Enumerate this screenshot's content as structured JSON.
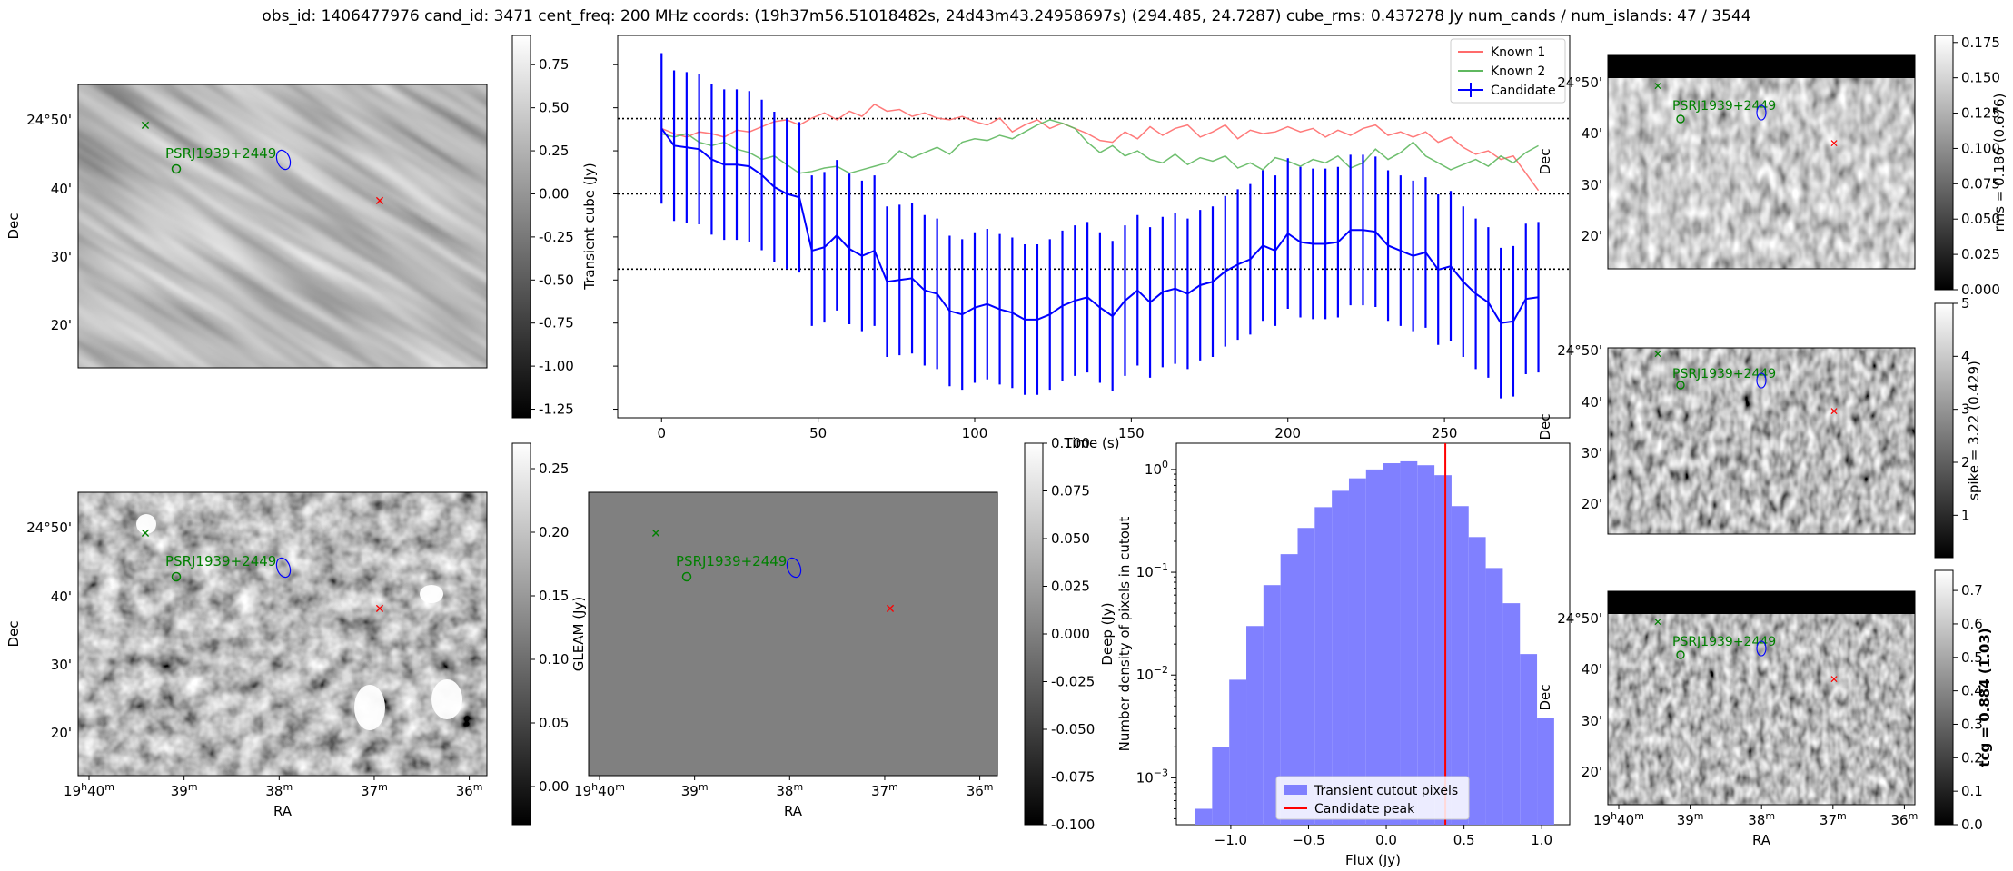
{
  "title": "obs_id: 1406477976 cand_id: 3471 cent_freq: 200 MHz coords: (19h37m56.51018482s, 24d43m43.24958697s) (294.485, 24.7287) cube_rms: 0.437278 Jy num_cands / num_islands: 47 / 3544",
  "sky": {
    "source_label": "PSRJ1939+2449",
    "dec_ticks": [
      "24°50'",
      "40'",
      "30'",
      "20'"
    ],
    "ra_ticks": [
      "19h40m",
      "39m",
      "38m",
      "37m",
      "36m"
    ],
    "ra_tick_h": "h",
    "ra_tick_m": "m",
    "xlabel": "RA",
    "ylabel": "Dec"
  },
  "panels": {
    "transient_cube": {
      "colorbar_label": "Transient cube (Jy)",
      "ticks": [
        "0.75",
        "0.50",
        "0.25",
        "0.00",
        "-0.25",
        "-0.50",
        "-0.75",
        "-1.00",
        "-1.25"
      ],
      "range": [
        -1.3,
        0.92
      ]
    },
    "deep": {
      "colorbar_label": "Deep (Jy)",
      "ticks": [
        "0.25",
        "0.20",
        "0.15",
        "0.10",
        "0.05",
        "0.00"
      ],
      "range": [
        -0.03,
        0.27
      ]
    },
    "gleam": {
      "colorbar_label": "GLEAM (Jy)",
      "ticks": [
        "0.100",
        "0.075",
        "0.050",
        "0.025",
        "0.000",
        "-0.025",
        "-0.050",
        "-0.075",
        "-0.100"
      ],
      "range": [
        -0.1,
        0.1
      ]
    },
    "rms": {
      "colorbar_label": "rms = 0.186 (0.676)",
      "ticks": [
        "0.175",
        "0.150",
        "0.125",
        "0.100",
        "0.075",
        "0.050",
        "0.025",
        "0.000"
      ],
      "range": [
        0,
        0.18
      ]
    },
    "spike": {
      "colorbar_label": "spike = 3.22 (0.429)",
      "ticks": [
        "5",
        "4",
        "3",
        "2",
        "1"
      ],
      "range": [
        0.2,
        5
      ]
    },
    "tcg": {
      "colorbar_label": "tcg = 0.884 (1.03)",
      "ticks": [
        "0.7",
        "0.6",
        "0.5",
        "0.4",
        "0.3",
        "0.2",
        "0.1",
        "0.0"
      ],
      "range": [
        0,
        0.76
      ]
    }
  },
  "chart_data": [
    {
      "type": "line",
      "title": "",
      "xlabel": "Time (s)",
      "ylabel": "Transient cube (Jy)",
      "xlim": [
        -14,
        290
      ],
      "ylim": [
        -1.3,
        0.92
      ],
      "xticks": [
        "0",
        "50",
        "100",
        "150",
        "200",
        "250"
      ],
      "hlines": [
        0.437,
        0.0,
        -0.437
      ],
      "legend": {
        "position": "top-right",
        "entries": [
          "Known 1",
          "Known 2",
          "Candidate"
        ]
      },
      "series": [
        {
          "name": "Known 1",
          "color": "#ff6b6b",
          "x": [
            0,
            4,
            8,
            12,
            16,
            20,
            24,
            28,
            32,
            36,
            40,
            44,
            48,
            52,
            56,
            60,
            64,
            68,
            72,
            76,
            80,
            84,
            88,
            92,
            96,
            100,
            104,
            108,
            112,
            116,
            120,
            124,
            128,
            132,
            136,
            140,
            144,
            148,
            152,
            156,
            160,
            164,
            168,
            172,
            176,
            180,
            184,
            188,
            192,
            196,
            200,
            204,
            208,
            212,
            216,
            220,
            224,
            228,
            232,
            236,
            240,
            244,
            248,
            252,
            256,
            260,
            264,
            268,
            272,
            276,
            280
          ],
          "values": [
            0.38,
            0.35,
            0.33,
            0.36,
            0.35,
            0.33,
            0.37,
            0.36,
            0.39,
            0.42,
            0.43,
            0.4,
            0.44,
            0.47,
            0.43,
            0.48,
            0.45,
            0.52,
            0.48,
            0.49,
            0.45,
            0.47,
            0.44,
            0.43,
            0.45,
            0.42,
            0.4,
            0.44,
            0.36,
            0.4,
            0.43,
            0.38,
            0.41,
            0.38,
            0.35,
            0.31,
            0.3,
            0.36,
            0.32,
            0.39,
            0.34,
            0.38,
            0.4,
            0.33,
            0.36,
            0.4,
            0.32,
            0.37,
            0.35,
            0.36,
            0.39,
            0.36,
            0.38,
            0.33,
            0.37,
            0.34,
            0.38,
            0.4,
            0.34,
            0.36,
            0.33,
            0.36,
            0.3,
            0.33,
            0.27,
            0.23,
            0.25,
            0.2,
            0.22,
            0.12,
            0.02
          ]
        },
        {
          "name": "Known 2",
          "color": "#5fb85f",
          "x": [
            0,
            4,
            8,
            12,
            16,
            20,
            24,
            28,
            32,
            36,
            40,
            44,
            48,
            52,
            56,
            60,
            64,
            68,
            72,
            76,
            80,
            84,
            88,
            92,
            96,
            100,
            104,
            108,
            112,
            116,
            120,
            124,
            128,
            132,
            136,
            140,
            144,
            148,
            152,
            156,
            160,
            164,
            168,
            172,
            176,
            180,
            184,
            188,
            192,
            196,
            200,
            204,
            208,
            212,
            216,
            220,
            224,
            228,
            232,
            236,
            240,
            244,
            248,
            252,
            256,
            260,
            264,
            268,
            272,
            276,
            280
          ],
          "values": [
            0.35,
            0.33,
            0.35,
            0.3,
            0.28,
            0.3,
            0.26,
            0.24,
            0.2,
            0.22,
            0.17,
            0.12,
            0.13,
            0.15,
            0.16,
            0.12,
            0.14,
            0.16,
            0.18,
            0.25,
            0.21,
            0.24,
            0.27,
            0.23,
            0.3,
            0.32,
            0.31,
            0.34,
            0.32,
            0.36,
            0.4,
            0.43,
            0.41,
            0.38,
            0.3,
            0.24,
            0.28,
            0.22,
            0.25,
            0.2,
            0.18,
            0.23,
            0.17,
            0.21,
            0.19,
            0.22,
            0.15,
            0.18,
            0.14,
            0.21,
            0.19,
            0.16,
            0.2,
            0.18,
            0.22,
            0.15,
            0.18,
            0.26,
            0.2,
            0.24,
            0.3,
            0.22,
            0.18,
            0.14,
            0.17,
            0.2,
            0.16,
            0.22,
            0.18,
            0.24,
            0.28
          ]
        },
        {
          "name": "Candidate",
          "color": "#0000ff",
          "x": [
            0,
            4,
            8,
            12,
            16,
            20,
            24,
            28,
            32,
            36,
            40,
            44,
            48,
            52,
            56,
            60,
            64,
            68,
            72,
            76,
            80,
            84,
            88,
            92,
            96,
            100,
            104,
            108,
            112,
            116,
            120,
            124,
            128,
            132,
            136,
            140,
            144,
            148,
            152,
            156,
            160,
            164,
            168,
            172,
            176,
            180,
            184,
            188,
            192,
            196,
            200,
            204,
            208,
            212,
            216,
            220,
            224,
            228,
            232,
            236,
            240,
            244,
            248,
            252,
            256,
            260,
            264,
            268,
            272,
            276,
            280
          ],
          "values": [
            0.38,
            0.28,
            0.27,
            0.26,
            0.2,
            0.17,
            0.17,
            0.16,
            0.11,
            0.04,
            0.0,
            -0.02,
            -0.33,
            -0.31,
            -0.24,
            -0.32,
            -0.36,
            -0.33,
            -0.51,
            -0.5,
            -0.49,
            -0.56,
            -0.58,
            -0.68,
            -0.7,
            -0.66,
            -0.64,
            -0.67,
            -0.69,
            -0.73,
            -0.73,
            -0.7,
            -0.65,
            -0.62,
            -0.6,
            -0.66,
            -0.71,
            -0.62,
            -0.56,
            -0.63,
            -0.57,
            -0.55,
            -0.58,
            -0.53,
            -0.51,
            -0.45,
            -0.41,
            -0.38,
            -0.3,
            -0.33,
            -0.23,
            -0.28,
            -0.29,
            -0.29,
            -0.28,
            -0.21,
            -0.21,
            -0.22,
            -0.3,
            -0.33,
            -0.36,
            -0.34,
            -0.44,
            -0.42,
            -0.51,
            -0.58,
            -0.63,
            -0.75,
            -0.74,
            -0.61,
            -0.6
          ],
          "errors": 0.437
        }
      ]
    },
    {
      "type": "bar",
      "title": "",
      "xlabel": "Flux (Jy)",
      "ylabel": "Number density of pixels in cutout",
      "yscale": "log",
      "xlim": [
        -1.35,
        1.18
      ],
      "ylim": [
        0.00035,
        1.8
      ],
      "xticks": [
        "-1.0",
        "-0.5",
        "0.0",
        "0.5",
        "1.0"
      ],
      "yticks": [
        "10^0",
        "10^-1",
        "10^-2",
        "10^-3"
      ],
      "legend": {
        "position": "bottom-center",
        "entries": [
          "Transient cutout pixels",
          "Candidate peak"
        ]
      },
      "bin_edges": [
        -1.23,
        -1.12,
        -1.01,
        -0.9,
        -0.79,
        -0.68,
        -0.57,
        -0.46,
        -0.35,
        -0.24,
        -0.13,
        -0.02,
        0.09,
        0.2,
        0.31,
        0.42,
        0.53,
        0.64,
        0.75,
        0.86,
        0.97,
        1.08
      ],
      "values": [
        0.0005,
        0.002,
        0.009,
        0.03,
        0.075,
        0.15,
        0.27,
        0.43,
        0.62,
        0.82,
        1.0,
        1.15,
        1.2,
        1.1,
        0.88,
        0.44,
        0.22,
        0.11,
        0.05,
        0.016,
        0.0038
      ],
      "series": [
        {
          "name": "Transient cutout pixels",
          "color": "#8080ff"
        },
        {
          "name": "Candidate peak",
          "color": "#ff0000",
          "value": 0.38
        }
      ]
    }
  ]
}
